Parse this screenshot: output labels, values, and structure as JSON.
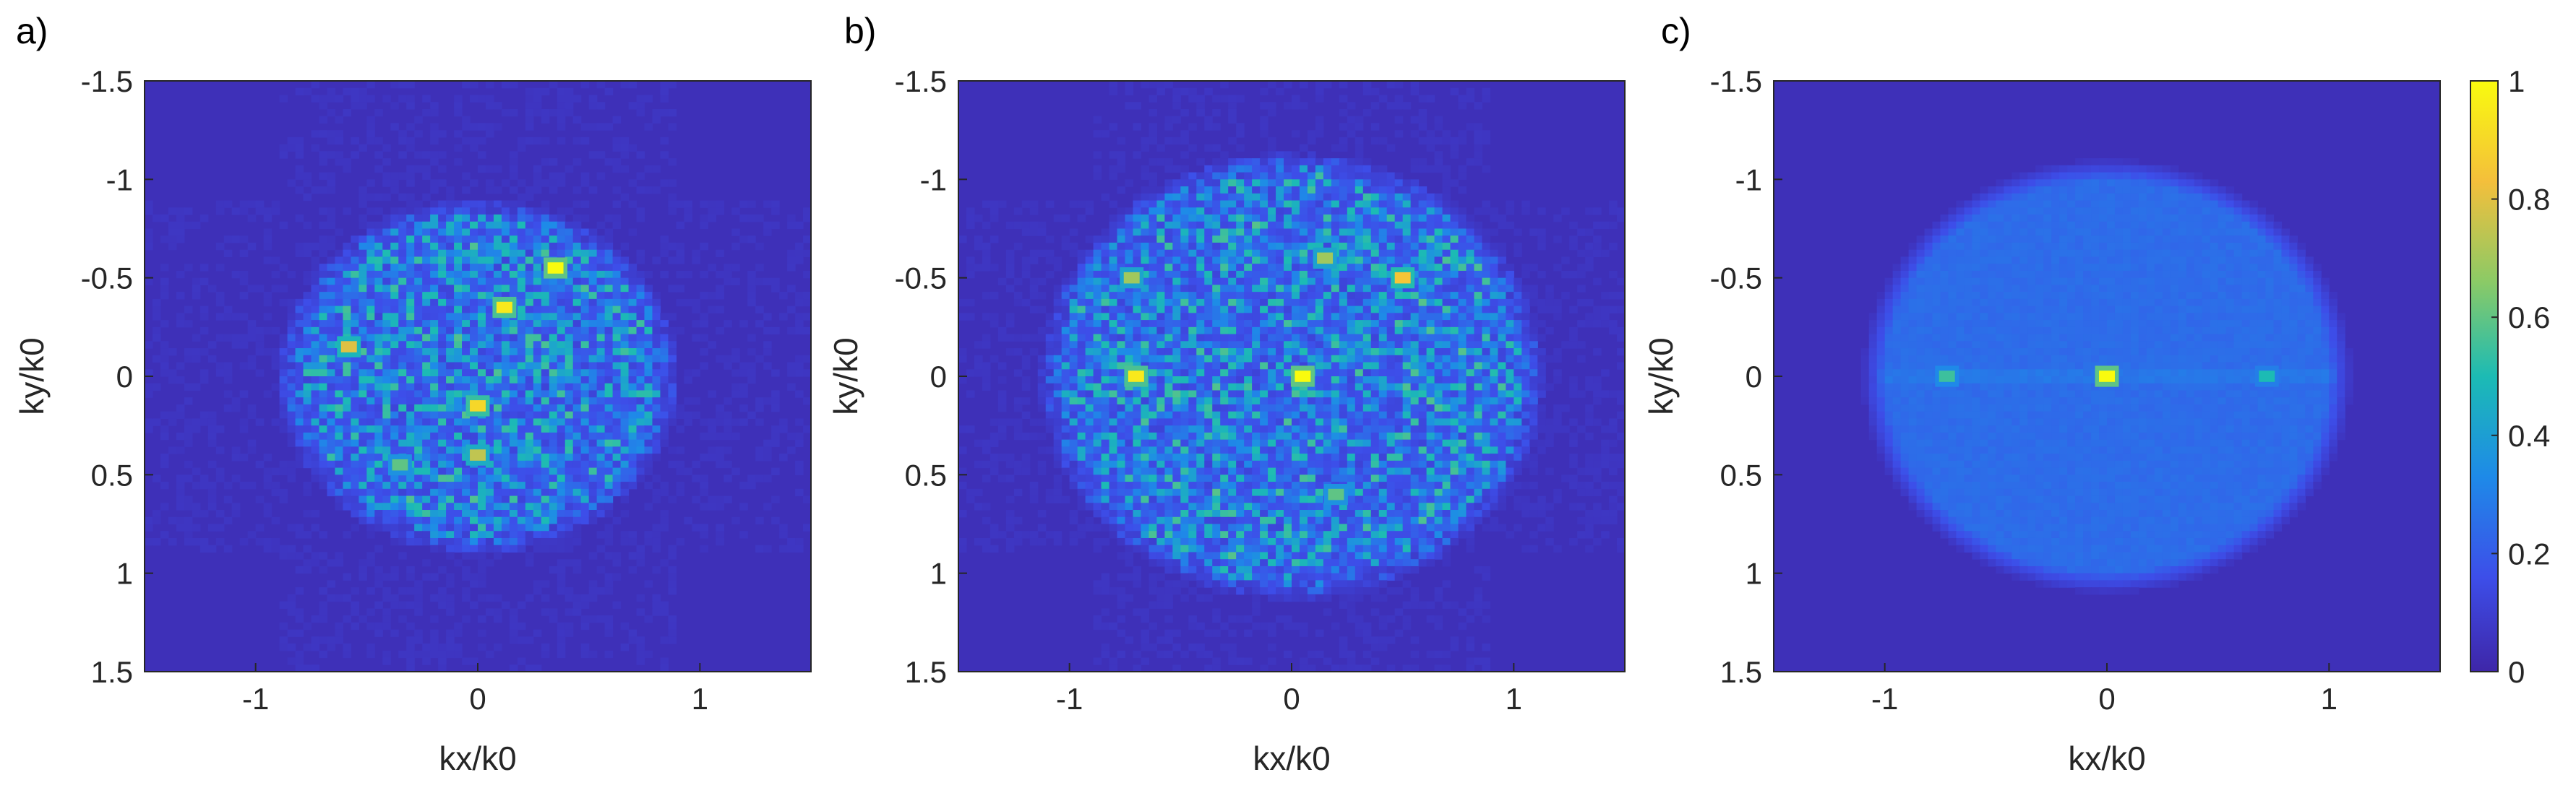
{
  "chart_data": [
    {
      "type": "heatmap",
      "panel_label": "a)",
      "xlabel": "kx/k0",
      "ylabel": "ky/k0",
      "xlim": [
        -1.5,
        1.5
      ],
      "ylim": [
        -1.5,
        1.5
      ],
      "y_axis_direction": "reversed",
      "xticks": [
        "-1",
        "0",
        "1"
      ],
      "yticks": [
        "-1.5",
        "-1",
        "-0.5",
        "0",
        "0.5",
        "1",
        "1.5"
      ],
      "pattern": "speckle",
      "disk_radius": 0.85,
      "disk_center": [
        0.0,
        0.0
      ],
      "peak_spots": [
        {
          "x": 0.35,
          "y": -0.55,
          "value": 1.0
        },
        {
          "x": 0.12,
          "y": -0.35,
          "value": 0.95
        },
        {
          "x": -0.58,
          "y": -0.15,
          "value": 0.8
        },
        {
          "x": 0.0,
          "y": 0.15,
          "value": 0.9
        },
        {
          "x": 0.0,
          "y": 0.4,
          "value": 0.75
        },
        {
          "x": -0.35,
          "y": 0.45,
          "value": 0.6
        }
      ]
    },
    {
      "type": "heatmap",
      "panel_label": "b)",
      "xlabel": "kx/k0",
      "ylabel": "ky/k0",
      "xlim": [
        -1.5,
        1.5
      ],
      "ylim": [
        -1.5,
        1.5
      ],
      "y_axis_direction": "reversed",
      "xticks": [
        "-1",
        "0",
        "1"
      ],
      "yticks": [
        "-1.5",
        "-1",
        "-0.5",
        "0",
        "0.5",
        "1",
        "1.5"
      ],
      "pattern": "speckle",
      "disk_radius": 1.08,
      "disk_center": [
        0.0,
        0.0
      ],
      "peak_spots": [
        {
          "x": 0.05,
          "y": 0.0,
          "value": 1.0
        },
        {
          "x": -0.7,
          "y": 0.0,
          "value": 0.95
        },
        {
          "x": 0.5,
          "y": -0.5,
          "value": 0.85
        },
        {
          "x": -0.72,
          "y": -0.5,
          "value": 0.7
        },
        {
          "x": 0.15,
          "y": -0.6,
          "value": 0.7
        },
        {
          "x": 0.2,
          "y": 0.6,
          "value": 0.6
        }
      ]
    },
    {
      "type": "heatmap",
      "panel_label": "c)",
      "xlabel": "kx/k0",
      "ylabel": "ky/k0",
      "xlim": [
        -1.5,
        1.5
      ],
      "ylim": [
        -1.5,
        1.5
      ],
      "y_axis_direction": "reversed",
      "xticks": [
        "-1",
        "0",
        "1"
      ],
      "yticks": [
        "-1.5",
        "-1",
        "-0.5",
        "0",
        "0.5",
        "1",
        "1.5"
      ],
      "pattern": "smooth-disk",
      "disk_radius": 1.05,
      "disk_center": [
        0.0,
        0.0
      ],
      "background_value": 0.25,
      "peak_spots": [
        {
          "x": 0.0,
          "y": 0.0,
          "value": 1.0
        },
        {
          "x": -0.72,
          "y": 0.0,
          "value": 0.55
        },
        {
          "x": 0.72,
          "y": 0.0,
          "value": 0.5
        }
      ],
      "colorbar": {
        "ticks": [
          "0",
          "0.2",
          "0.4",
          "0.6",
          "0.8",
          "1"
        ],
        "range": [
          0,
          1
        ],
        "colormap": "parula",
        "colors": [
          "#3e26a8",
          "#3d4ee9",
          "#1e8ae8",
          "#1cbbb4",
          "#8bca66",
          "#f4bf3b",
          "#f9fb0e"
        ]
      }
    }
  ]
}
